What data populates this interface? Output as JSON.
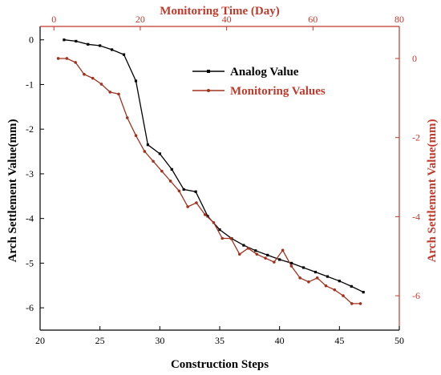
{
  "colors": {
    "axis": "#000000",
    "secondary": "#c0392b",
    "series_analog": "#000000",
    "series_monitoring": "#a0321e"
  },
  "chart_data": {
    "type": "line",
    "xlabel_bottom": "Construction Steps",
    "xlabel_top": "Monitoring Time (Day)",
    "ylabel_left": "Arch Settlement Value(mm)",
    "ylabel_right": "Arch Settlement Value(mm)",
    "xlim_bottom": [
      20,
      50
    ],
    "xticks_bottom": [
      "20",
      "25",
      "30",
      "35",
      "40",
      "45",
      "50"
    ],
    "xlim_top": [
      -3.2,
      80
    ],
    "xticks_top": [
      "0",
      "20",
      "40",
      "60",
      "80"
    ],
    "ylim_left": [
      -6.5,
      0.3
    ],
    "yticks_left": [
      "0",
      "-1",
      "-2",
      "-3",
      "-4",
      "-5",
      "-6"
    ],
    "ylim_right": [
      -6.87,
      0.81
    ],
    "yticks_right": [
      "0",
      "-2",
      "-4",
      "-6"
    ],
    "grid": false,
    "legend_position": "top-right",
    "series": [
      {
        "name": "Analog Value",
        "axis": "bottom-left",
        "x": [
          22,
          23,
          24,
          25,
          26,
          27,
          28,
          29,
          30,
          31,
          32,
          33,
          34,
          35,
          36,
          37,
          38,
          39,
          40,
          41,
          42,
          43,
          44,
          45,
          46,
          47
        ],
        "y": [
          0.0,
          -0.03,
          -0.1,
          -0.13,
          -0.22,
          -0.33,
          -0.92,
          -2.35,
          -2.55,
          -2.9,
          -3.35,
          -3.4,
          -3.95,
          -4.25,
          -4.45,
          -4.6,
          -4.72,
          -4.82,
          -4.92,
          -5.0,
          -5.1,
          -5.2,
          -5.3,
          -5.4,
          -5.52,
          -5.65
        ]
      },
      {
        "name": "Monitoring Values",
        "axis": "top-right",
        "x": [
          1,
          3,
          5,
          7,
          9,
          11,
          13,
          15,
          17,
          19,
          21,
          23,
          25,
          27,
          29,
          31,
          33,
          35,
          37,
          39,
          41,
          43,
          45,
          47,
          49,
          51,
          53,
          55,
          57,
          59,
          61,
          63,
          65,
          67,
          69,
          71
        ],
        "y": [
          0.0,
          0.0,
          -0.1,
          -0.4,
          -0.5,
          -0.65,
          -0.85,
          -0.9,
          -1.5,
          -1.95,
          -2.35,
          -2.6,
          -2.85,
          -3.1,
          -3.35,
          -3.75,
          -3.65,
          -3.95,
          -4.15,
          -4.55,
          -4.55,
          -4.95,
          -4.8,
          -4.95,
          -5.05,
          -5.15,
          -4.85,
          -5.25,
          -5.55,
          -5.65,
          -5.55,
          -5.75,
          -5.85,
          -6.0,
          -6.2,
          -6.2
        ]
      }
    ]
  }
}
